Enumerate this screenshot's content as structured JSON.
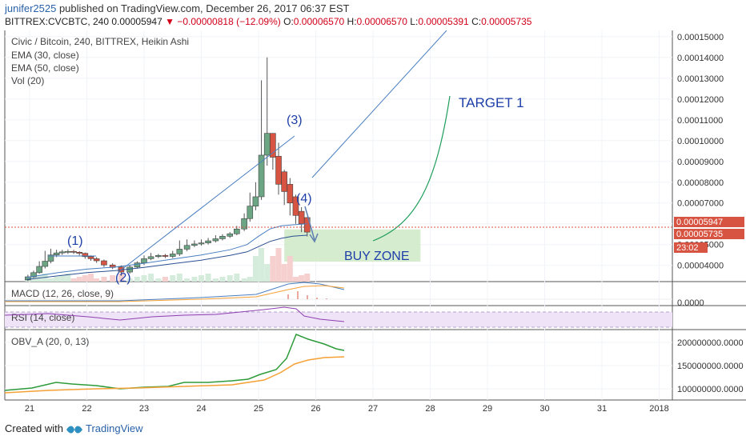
{
  "header": {
    "author": "junifer2525",
    "published": "published on TradingView.com, December 26, 2017 06:37 EST",
    "symbol": "BITTREX:CVCBTC, 240",
    "last_price": "0.00005947",
    "change": "▼ −0.00000818 (−12.09%)",
    "o_label": "O:",
    "o_value": "0.00006570",
    "h_label": "H:",
    "h_value": "0.00006570",
    "l_label": "L:",
    "l_value": "0.00005391",
    "c_label": "C:",
    "c_value": "0.00005735"
  },
  "legend": {
    "title": "Civic / Bitcoin, 240, BITTREX, Heikin Ashi",
    "ema30": "EMA (30, close)",
    "ema50": "EMA (50, close)",
    "vol": "Vol (20)"
  },
  "panes": {
    "macd": "MACD (12, 26, close, 9)",
    "rsi": "RSI (14, close)",
    "obv": "OBV_A (20, 0, 13)"
  },
  "annotations": {
    "wave1": "(1)",
    "wave2": "(2)",
    "wave3": "(3)",
    "wave4": "(4)",
    "target": "TARGET 1",
    "buy_zone": "BUY ZONE"
  },
  "price_labels": {
    "last": "0.00005947",
    "close": "0.00005735",
    "timer": "23:02",
    "macd_zero": "0.0000"
  },
  "footer": {
    "created_with": "Created with",
    "brand": "TradingView"
  },
  "colors": {
    "up": "#6ba583",
    "down": "#d75442",
    "ema": "#4a7fc1",
    "annotation": "#1e3ea8",
    "target_curve": "#1e9c5a",
    "buy_zone": "#cfe9c7",
    "rsi_band": "#eee3f7",
    "obv_line": "#2e9b3a",
    "obv_signal": "#f5a034"
  },
  "chart_data": {
    "type": "candlestick",
    "title": "Civic / Bitcoin, 240, BITTREX, Heikin Ashi",
    "x_ticks": [
      "21",
      "22",
      "23",
      "24",
      "25",
      "26",
      "27",
      "28",
      "29",
      "30",
      "31",
      "2018"
    ],
    "y_ticks": [
      "0.00015000",
      "0.00014000",
      "0.00013000",
      "0.00012000",
      "0.00011000",
      "0.00010000",
      "0.00009000",
      "0.00008000",
      "0.00007000",
      "0.00006000",
      "0.00005000",
      "0.00004000"
    ],
    "obv_ticks": [
      "200000000.0000",
      "150000000.0000",
      "100000000.0000"
    ],
    "xlim": [
      20.95,
      28.2
    ],
    "ylim": [
      3.22e-05,
      0.000153
    ],
    "candles": [
      {
        "x": 20.97,
        "o": 3.3e-05,
        "c": 3.45e-05,
        "h": 3.55e-05,
        "l": 3.25e-05
      },
      {
        "x": 21.07,
        "o": 3.45e-05,
        "c": 3.65e-05,
        "h": 3.75e-05,
        "l": 3.4e-05
      },
      {
        "x": 21.17,
        "o": 3.65e-05,
        "c": 3.95e-05,
        "h": 4.2e-05,
        "l": 3.6e-05
      },
      {
        "x": 21.27,
        "o": 3.95e-05,
        "c": 4.2e-05,
        "h": 4.7e-05,
        "l": 3.85e-05
      },
      {
        "x": 21.37,
        "o": 4.2e-05,
        "c": 4.5e-05,
        "h": 4.8e-05,
        "l": 4.1e-05
      },
      {
        "x": 21.47,
        "o": 4.5e-05,
        "c": 4.6e-05,
        "h": 4.75e-05,
        "l": 4.4e-05
      },
      {
        "x": 21.57,
        "o": 4.6e-05,
        "c": 4.65e-05,
        "h": 4.75e-05,
        "l": 4.5e-05
      },
      {
        "x": 21.67,
        "o": 4.65e-05,
        "c": 4.67e-05,
        "h": 4.77e-05,
        "l": 4.55e-05
      },
      {
        "x": 21.77,
        "o": 4.67e-05,
        "c": 4.63e-05,
        "h": 4.75e-05,
        "l": 4.55e-05
      },
      {
        "x": 21.87,
        "o": 4.63e-05,
        "c": 4.58e-05,
        "h": 4.68e-05,
        "l": 4.48e-05
      },
      {
        "x": 21.97,
        "o": 4.58e-05,
        "c": 4.42e-05,
        "h": 4.62e-05,
        "l": 4.32e-05
      },
      {
        "x": 22.07,
        "o": 4.42e-05,
        "c": 4.32e-05,
        "h": 4.48e-05,
        "l": 4.22e-05
      },
      {
        "x": 22.17,
        "o": 4.32e-05,
        "c": 4.22e-05,
        "h": 4.4e-05,
        "l": 4.12e-05
      },
      {
        "x": 22.3,
        "o": 4.22e-05,
        "c": 4.02e-05,
        "h": 4.28e-05,
        "l": 3.92e-05
      },
      {
        "x": 22.45,
        "o": 4.02e-05,
        "c": 3.9e-05,
        "h": 4.1e-05,
        "l": 3.82e-05
      },
      {
        "x": 22.6,
        "o": 3.92e-05,
        "c": 3.68e-05,
        "h": 4e-05,
        "l": 3.5e-05
      },
      {
        "x": 22.75,
        "o": 3.68e-05,
        "c": 3.92e-05,
        "h": 4e-05,
        "l": 3.6e-05
      },
      {
        "x": 22.88,
        "o": 3.92e-05,
        "c": 4.12e-05,
        "h": 4.2e-05,
        "l": 3.85e-05
      },
      {
        "x": 23.0,
        "o": 4.12e-05,
        "c": 4.32e-05,
        "h": 4.48e-05,
        "l": 4.02e-05
      },
      {
        "x": 23.12,
        "o": 4.32e-05,
        "c": 4.42e-05,
        "h": 4.6e-05,
        "l": 4.25e-05
      },
      {
        "x": 23.25,
        "o": 4.42e-05,
        "c": 4.48e-05,
        "h": 4.55e-05,
        "l": 4.35e-05
      },
      {
        "x": 23.37,
        "o": 4.48e-05,
        "c": 4.43e-05,
        "h": 4.55e-05,
        "l": 4.35e-05
      },
      {
        "x": 23.5,
        "o": 4.43e-05,
        "c": 4.55e-05,
        "h": 4.7e-05,
        "l": 4.35e-05
      },
      {
        "x": 23.62,
        "o": 4.55e-05,
        "c": 4.78e-05,
        "h": 5.2e-05,
        "l": 4.45e-05
      },
      {
        "x": 23.75,
        "o": 4.78e-05,
        "c": 4.96e-05,
        "h": 5.25e-05,
        "l": 4.68e-05
      },
      {
        "x": 23.88,
        "o": 4.96e-05,
        "c": 5.03e-05,
        "h": 5.2e-05,
        "l": 4.88e-05
      },
      {
        "x": 24.0,
        "o": 5.03e-05,
        "c": 5.08e-05,
        "h": 5.25e-05,
        "l": 4.95e-05
      },
      {
        "x": 24.12,
        "o": 5.08e-05,
        "c": 5.18e-05,
        "h": 5.32e-05,
        "l": 5e-05
      },
      {
        "x": 24.25,
        "o": 5.18e-05,
        "c": 5.28e-05,
        "h": 5.45e-05,
        "l": 5.1e-05
      },
      {
        "x": 24.37,
        "o": 5.28e-05,
        "c": 5.4e-05,
        "h": 5.5e-05,
        "l": 5.2e-05
      },
      {
        "x": 24.5,
        "o": 5.4e-05,
        "c": 5.52e-05,
        "h": 5.6e-05,
        "l": 5.32e-05
      },
      {
        "x": 24.62,
        "o": 5.52e-05,
        "c": 5.75e-05,
        "h": 5.9e-05,
        "l": 5.45e-05
      },
      {
        "x": 24.75,
        "o": 5.75e-05,
        "c": 6.25e-05,
        "h": 6.5e-05,
        "l": 5.65e-05
      },
      {
        "x": 24.85,
        "o": 6.25e-05,
        "c": 6.85e-05,
        "h": 7.5e-05,
        "l": 6.1e-05
      },
      {
        "x": 24.95,
        "o": 6.85e-05,
        "c": 7.3e-05,
        "h": 8e-05,
        "l": 6.65e-05
      },
      {
        "x": 25.05,
        "o": 7.3e-05,
        "c": 9.3e-05,
        "h": 0.000129,
        "l": 7.15e-05
      },
      {
        "x": 25.15,
        "o": 9.3e-05,
        "c": 0.0001035,
        "h": 0.00014,
        "l": 8.8e-05
      },
      {
        "x": 25.25,
        "o": 0.0001035,
        "c": 9.2e-05,
        "h": 0.000103,
        "l": 8.6e-05
      },
      {
        "x": 25.35,
        "o": 9.25e-05,
        "c": 7.9e-05,
        "h": 9.9e-05,
        "l": 7.4e-05
      },
      {
        "x": 25.45,
        "o": 8.5e-05,
        "c": 7.55e-05,
        "h": 8.6e-05,
        "l": 6.9e-05
      },
      {
        "x": 25.55,
        "o": 7.9e-05,
        "c": 7e-05,
        "h": 8.2e-05,
        "l": 6.4e-05
      },
      {
        "x": 25.65,
        "o": 7.3e-05,
        "c": 6.4e-05,
        "h": 7.4e-05,
        "l": 6e-05
      },
      {
        "x": 25.75,
        "o": 6.6e-05,
        "c": 6e-05,
        "h": 6.8e-05,
        "l": 5.6e-05
      },
      {
        "x": 25.85,
        "o": 6.3e-05,
        "c": 5.6e-05,
        "h": 6.32e-05,
        "l": 5.39e-05
      }
    ],
    "ema30": {
      "x": [
        20.95,
        21.5,
        22.0,
        22.5,
        23.0,
        23.5,
        24.0,
        24.5,
        24.8,
        25.0,
        25.2,
        25.4,
        25.6,
        25.85
      ],
      "y": [
        3.42e-05,
        3.65e-05,
        3.82e-05,
        3.92e-05,
        4.1e-05,
        4.3e-05,
        4.5e-05,
        4.75e-05,
        5e-05,
        5.4e-05,
        5.75e-05,
        5.9e-05,
        5.95e-05,
        6e-05
      ]
    },
    "ema50": {
      "x": [
        20.95,
        21.5,
        22.0,
        22.5,
        23.0,
        23.5,
        24.0,
        24.5,
        24.8,
        25.0,
        25.2,
        25.4,
        25.6,
        25.85
      ],
      "y": [
        3.32e-05,
        3.5e-05,
        3.65e-05,
        3.75e-05,
        3.9e-05,
        4.08e-05,
        4.25e-05,
        4.48e-05,
        4.65e-05,
        4.9e-05,
        5.15e-05,
        5.3e-05,
        5.4e-05,
        5.45e-05
      ]
    },
    "buy_zone": {
      "x": [
        25.45,
        27.83
      ],
      "y": [
        4.18e-05,
        5.73e-05
      ]
    }
  }
}
